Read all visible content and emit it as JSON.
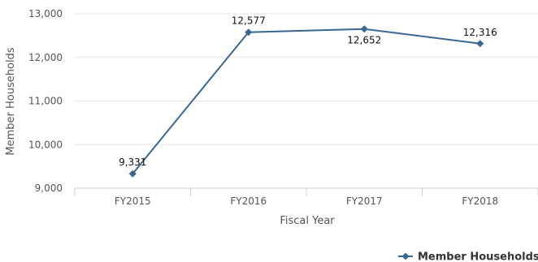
{
  "chart_data": {
    "type": "line",
    "title": "",
    "xlabel": "Fiscal Year",
    "ylabel": "Member Households",
    "categories": [
      "FY2015",
      "FY2016",
      "FY2017",
      "FY2018"
    ],
    "series": [
      {
        "name": "Member Households",
        "values": [
          9331,
          12577,
          12652,
          12316
        ]
      }
    ],
    "data_labels": [
      "9,331",
      "12,577",
      "12,652",
      "12,316"
    ],
    "ylim": [
      9000,
      13000
    ],
    "yticks": [
      9000,
      10000,
      11000,
      12000,
      13000
    ],
    "ytick_labels": [
      "9,000",
      "10,000",
      "11,000",
      "12,000",
      "13,000"
    ],
    "grid": "horizontal",
    "legend_position": "bottom-right",
    "marker": "diamond",
    "colors": {
      "series": "#3a6791",
      "grid": "#e6e6e6",
      "axis": "#c8d2dc"
    }
  }
}
